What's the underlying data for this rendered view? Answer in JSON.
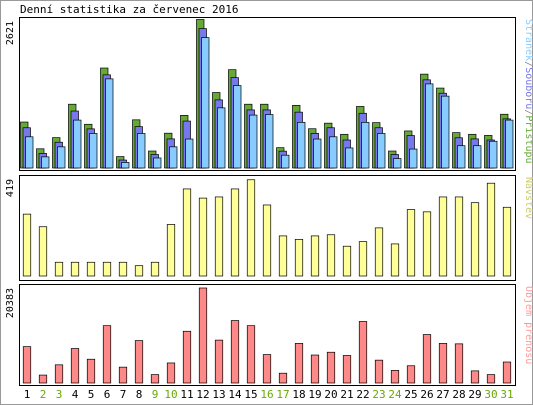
{
  "chart_data": {
    "type": "bar",
    "title": "Denní statistika za červenec 2016",
    "categories": [
      "1",
      "2",
      "3",
      "4",
      "5",
      "6",
      "7",
      "8",
      "9",
      "10",
      "11",
      "12",
      "13",
      "14",
      "15",
      "16",
      "17",
      "18",
      "19",
      "20",
      "21",
      "22",
      "23",
      "24",
      "25",
      "26",
      "27",
      "28",
      "29",
      "30",
      "31"
    ],
    "weekend_days": [
      "2",
      "3",
      "9",
      "10",
      "16",
      "17",
      "23",
      "24",
      "30",
      "31"
    ],
    "colors": {
      "pristupu": "#66aa33",
      "souboru": "#7777ee",
      "stranek": "#88ccff",
      "navstev": "#ffff99",
      "prenos": "#ff8888",
      "weekend_label": "#66aa00",
      "weekday_label": "#000000",
      "frame": "#000000"
    },
    "panels": [
      {
        "id": "requests",
        "ymax": 2621,
        "ymax_label": "2621",
        "legend": [
          {
            "text": "Stránek",
            "color": "#88ccff"
          },
          {
            "text": "/",
            "color": "#888888"
          },
          {
            "text": "Souborů",
            "color": "#7777ee"
          },
          {
            "text": "/",
            "color": "#888888"
          },
          {
            "text": "Přístupů",
            "color": "#66aa33"
          }
        ],
        "series": [
          {
            "name": "Přístupů",
            "color": "#66aa33",
            "values": [
              780,
              300,
              500,
              1100,
              740,
              1750,
              160,
              820,
              260,
              580,
              900,
              2621,
              1310,
              1720,
              1100,
              1100,
              320,
              1080,
              660,
              760,
              560,
              1060,
              770,
              260,
              620,
              1640,
              1390,
              590,
              560,
              540,
              920
            ]
          },
          {
            "name": "Souborů",
            "color": "#7777ee",
            "values": [
              700,
              240,
              440,
              1000,
              680,
              1650,
              120,
              720,
              220,
              500,
              820,
              2480,
              1200,
              1600,
              1020,
              1020,
              280,
              980,
              600,
              700,
              480,
              960,
              700,
              220,
              560,
              1560,
              1320,
              520,
              500,
              480,
              860
            ]
          },
          {
            "name": "Stránek",
            "color": "#88ccff",
            "values": [
              560,
              200,
              380,
              860,
              620,
              1600,
              100,
              620,
              180,
              380,
              520,
              2340,
              1080,
              1480,
              950,
              960,
              230,
              820,
              520,
              560,
              360,
              820,
              620,
              170,
              340,
              1510,
              1290,
              400,
              400,
              480,
              860
            ]
          }
        ]
      },
      {
        "id": "visits",
        "ymax": 419,
        "ymax_label": "419",
        "legend": [
          {
            "text": "Návštěv",
            "color": "#cccc66"
          }
        ],
        "series": [
          {
            "name": "Návštěv",
            "color": "#ffff99",
            "values": [
              270,
              215,
              60,
              60,
              60,
              60,
              60,
              45,
              60,
              225,
              380,
              340,
              345,
              380,
              420,
              310,
              175,
              160,
              175,
              180,
              130,
              150,
              210,
              140,
              290,
              280,
              345,
              345,
              320,
              405,
              300
            ]
          }
        ]
      },
      {
        "id": "transfer",
        "ymax": 20383,
        "ymax_label": "20383",
        "legend": [
          {
            "text": "Objem přenosu",
            "color": "#ff9999"
          }
        ],
        "series": [
          {
            "name": "Objem přenosu",
            "color": "#ff8888",
            "values": [
              7800,
              1700,
              3900,
              7400,
              5100,
              12300,
              3400,
              9100,
              1800,
              4300,
              11100,
              20383,
              9200,
              13400,
              12300,
              6100,
              2100,
              8500,
              6000,
              6600,
              5900,
              13200,
              4900,
              2700,
              3700,
              10400,
              8500,
              8400,
              2600,
              1800,
              4500
            ]
          }
        ]
      }
    ]
  }
}
